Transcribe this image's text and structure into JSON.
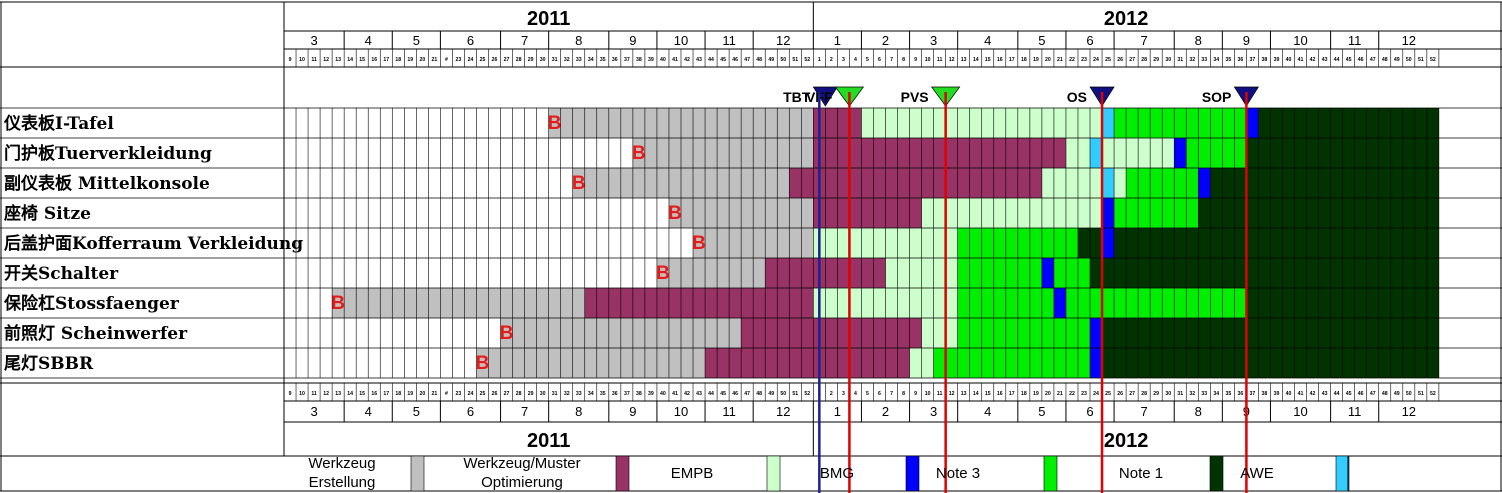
{
  "chart_data": {
    "type": "gantt",
    "years": [
      {
        "label": "2011",
        "start_week": 9,
        "end_week": 52
      },
      {
        "label": "2012",
        "start_week": 1,
        "end_week": 52
      }
    ],
    "months": [
      {
        "label": "3",
        "year": "2011",
        "start": 9,
        "end": 13
      },
      {
        "label": "4",
        "year": "2011",
        "start": 14,
        "end": 17
      },
      {
        "label": "5",
        "year": "2011",
        "start": 18,
        "end": 21
      },
      {
        "label": "6",
        "year": "2011",
        "start": 22,
        "end": 26
      },
      {
        "label": "7",
        "year": "2011",
        "start": 27,
        "end": 30
      },
      {
        "label": "8",
        "year": "2011",
        "start": 31,
        "end": 35
      },
      {
        "label": "9",
        "year": "2011",
        "start": 36,
        "end": 39
      },
      {
        "label": "10",
        "year": "2011",
        "start": 40,
        "end": 43
      },
      {
        "label": "11",
        "year": "2011",
        "start": 44,
        "end": 47
      },
      {
        "label": "12",
        "year": "2011",
        "start": 48,
        "end": 52
      },
      {
        "label": "1",
        "year": "2012",
        "start": 1,
        "end": 4
      },
      {
        "label": "2",
        "year": "2012",
        "start": 5,
        "end": 8
      },
      {
        "label": "3",
        "year": "2012",
        "start": 9,
        "end": 12
      },
      {
        "label": "4",
        "year": "2012",
        "start": 13,
        "end": 17
      },
      {
        "label": "5",
        "year": "2012",
        "start": 18,
        "end": 21
      },
      {
        "label": "6",
        "year": "2012",
        "start": 22,
        "end": 25
      },
      {
        "label": "7",
        "year": "2012",
        "start": 26,
        "end": 30
      },
      {
        "label": "8",
        "year": "2012",
        "start": 31,
        "end": 34
      },
      {
        "label": "9",
        "year": "2012",
        "start": 35,
        "end": 38
      },
      {
        "label": "10",
        "year": "2012",
        "start": 39,
        "end": 43
      },
      {
        "label": "11",
        "year": "2012",
        "start": 44,
        "end": 47
      },
      {
        "label": "12",
        "year": "2012",
        "start": 48,
        "end": 52
      }
    ],
    "week_labels_2011": [
      "9",
      "10",
      "11",
      "12",
      "13",
      "14",
      "15",
      "16",
      "17",
      "18",
      "19",
      "20",
      "21",
      "#",
      "23",
      "24",
      "25",
      "26",
      "27",
      "28",
      "29",
      "30",
      "31",
      "32",
      "33",
      "34",
      "35",
      "36",
      "37",
      "38",
      "39",
      "40",
      "41",
      "42",
      "43",
      "44",
      "45",
      "46",
      "47",
      "48",
      "49",
      "50",
      "51",
      "52"
    ],
    "milestones": [
      {
        "label": "TBT",
        "week": 2,
        "marker": "navy-triangle"
      },
      {
        "label": "VFF",
        "week": 4,
        "marker": "green-triangle"
      },
      {
        "label": "PVS",
        "week": 12,
        "marker": "green-triangle"
      },
      {
        "label": "OS",
        "week": 25,
        "marker": "navy-triangle"
      },
      {
        "label": "SOP",
        "week": 37,
        "marker": "navy-triangle"
      }
    ],
    "vertical_lines": [
      {
        "week": 1.5,
        "color": "#1f1f8f"
      },
      {
        "week": 4,
        "color": "#e00000"
      },
      {
        "week": 12,
        "color": "#e00000"
      },
      {
        "week": 25,
        "color": "#e00000"
      },
      {
        "week": 37,
        "color": "#e00000"
      }
    ],
    "rows": [
      {
        "label": "仪表板I-Tafel",
        "b_week": 31,
        "segments": [
          {
            "category": "Werkzeug Erstellung",
            "start": 31,
            "end": 52
          },
          {
            "category": "Werkzeug/Muster Optimierung",
            "start": 53,
            "end": 56
          },
          {
            "category": "EMPB",
            "start": 57,
            "end": 76
          },
          {
            "category": "AWE",
            "start": 77,
            "end": 77
          },
          {
            "category": "Note 3",
            "start": 78,
            "end": 88
          },
          {
            "category": "BMG",
            "start": 89,
            "end": 89
          },
          {
            "category": "Note 1",
            "start": 90,
            "end": 104
          }
        ]
      },
      {
        "label": "门护板Tuerverkleidung",
        "b_week": 38,
        "segments": [
          {
            "category": "Werkzeug Erstellung",
            "start": 38,
            "end": 52
          },
          {
            "category": "Werkzeug/Muster Optimierung",
            "start": 53,
            "end": 73
          },
          {
            "category": "EMPB",
            "start": 74,
            "end": 75
          },
          {
            "category": "AWE",
            "start": 76,
            "end": 76
          },
          {
            "category": "EMPB",
            "start": 77,
            "end": 82
          },
          {
            "category": "BMG",
            "start": 83,
            "end": 83
          },
          {
            "category": "Note 3",
            "start": 84,
            "end": 88
          },
          {
            "category": "Note 1",
            "start": 89,
            "end": 104
          }
        ]
      },
      {
        "label": "副仪表板 Mittelkonsole",
        "b_week": 33,
        "segments": [
          {
            "category": "Werkzeug Erstellung",
            "start": 33,
            "end": 50
          },
          {
            "category": "Werkzeug/Muster Optimierung",
            "start": 51,
            "end": 71
          },
          {
            "category": "EMPB",
            "start": 72,
            "end": 76
          },
          {
            "category": "AWE",
            "start": 77,
            "end": 77
          },
          {
            "category": "EMPB",
            "start": 78,
            "end": 78
          },
          {
            "category": "Note 3",
            "start": 79,
            "end": 84
          },
          {
            "category": "BMG",
            "start": 85,
            "end": 85
          },
          {
            "category": "Note 1",
            "start": 86,
            "end": 104
          }
        ]
      },
      {
        "label": "座椅 Sitze",
        "b_week": 41,
        "segments": [
          {
            "category": "Werkzeug Erstellung",
            "start": 41,
            "end": 52
          },
          {
            "category": "Werkzeug/Muster Optimierung",
            "start": 53,
            "end": 61
          },
          {
            "category": "EMPB",
            "start": 62,
            "end": 76
          },
          {
            "category": "BMG",
            "start": 77,
            "end": 77
          },
          {
            "category": "Note 3",
            "start": 78,
            "end": 84
          },
          {
            "category": "Note 1",
            "start": 85,
            "end": 104
          }
        ]
      },
      {
        "label": "后盖护面Kofferraum Verkleidung",
        "b_week": 43,
        "segments": [
          {
            "category": "Werkzeug Erstellung",
            "start": 43,
            "end": 52
          },
          {
            "category": "EMPB",
            "start": 53,
            "end": 64
          },
          {
            "category": "Note 3",
            "start": 65,
            "end": 74
          },
          {
            "category": "Note 1",
            "start": 75,
            "end": 76
          },
          {
            "category": "BMG",
            "start": 77,
            "end": 77
          },
          {
            "category": "Note 1",
            "start": 78,
            "end": 104
          }
        ]
      },
      {
        "label": "开关Schalter",
        "b_week": 40,
        "segments": [
          {
            "category": "Werkzeug Erstellung",
            "start": 40,
            "end": 48
          },
          {
            "category": "Werkzeug/Muster Optimierung",
            "start": 49,
            "end": 58
          },
          {
            "category": "EMPB",
            "start": 59,
            "end": 64
          },
          {
            "category": "Note 3",
            "start": 65,
            "end": 71
          },
          {
            "category": "BMG",
            "start": 72,
            "end": 72
          },
          {
            "category": "Note 3",
            "start": 73,
            "end": 75
          },
          {
            "category": "Note 1",
            "start": 76,
            "end": 104
          }
        ]
      },
      {
        "label": "保险杠Stossfaenger",
        "b_week": 13,
        "segments": [
          {
            "category": "Werkzeug Erstellung",
            "start": 13,
            "end": 33
          },
          {
            "category": "Werkzeug/Muster Optimierung",
            "start": 34,
            "end": 52
          },
          {
            "category": "EMPB",
            "start": 53,
            "end": 64
          },
          {
            "category": "Note 3",
            "start": 65,
            "end": 72
          },
          {
            "category": "BMG",
            "start": 73,
            "end": 73
          },
          {
            "category": "Note 3",
            "start": 74,
            "end": 88
          },
          {
            "category": "Note 1",
            "start": 89,
            "end": 104
          }
        ]
      },
      {
        "label": "前照灯 Scheinwerfer",
        "b_week": 27,
        "segments": [
          {
            "category": "Werkzeug Erstellung",
            "start": 27,
            "end": 46
          },
          {
            "category": "Werkzeug/Muster Optimierung",
            "start": 47,
            "end": 61
          },
          {
            "category": "EMPB",
            "start": 62,
            "end": 64
          },
          {
            "category": "Note 3",
            "start": 65,
            "end": 75
          },
          {
            "category": "BMG",
            "start": 76,
            "end": 76
          },
          {
            "category": "Note 1",
            "start": 77,
            "end": 104
          }
        ]
      },
      {
        "label": "尾灯SBBR",
        "b_week": 25,
        "segments": [
          {
            "category": "Werkzeug Erstellung",
            "start": 25,
            "end": 43
          },
          {
            "category": "Werkzeug/Muster Optimierung",
            "start": 44,
            "end": 60
          },
          {
            "category": "EMPB",
            "start": 61,
            "end": 62
          },
          {
            "category": "Note 3",
            "start": 63,
            "end": 75
          },
          {
            "category": "BMG",
            "start": 76,
            "end": 76
          },
          {
            "category": "Note 1",
            "start": 77,
            "end": 104
          }
        ]
      }
    ],
    "legend": [
      {
        "label": "Werkzeug Erstellung",
        "lines": [
          "Werkzeug",
          "Erstellung"
        ],
        "color": "#c0c0c0"
      },
      {
        "label": "Werkzeug/Muster Optimierung",
        "lines": [
          "Werkzeug/Muster",
          "Optimierung"
        ],
        "color": "#993366"
      },
      {
        "label": "EMPB",
        "lines": [
          "EMPB"
        ],
        "color": "#ccffcc"
      },
      {
        "label": "BMG",
        "lines": [
          "BMG"
        ],
        "color": "#0000ff"
      },
      {
        "label": "Note 3",
        "lines": [
          "Note 3"
        ],
        "color": "#00ee00"
      },
      {
        "label": "Note 1",
        "lines": [
          "Note 1"
        ],
        "color": "#003300"
      },
      {
        "label": "AWE",
        "lines": [
          "AWE"
        ],
        "color": "#33ccff"
      }
    ],
    "b_marker_text": "B"
  }
}
